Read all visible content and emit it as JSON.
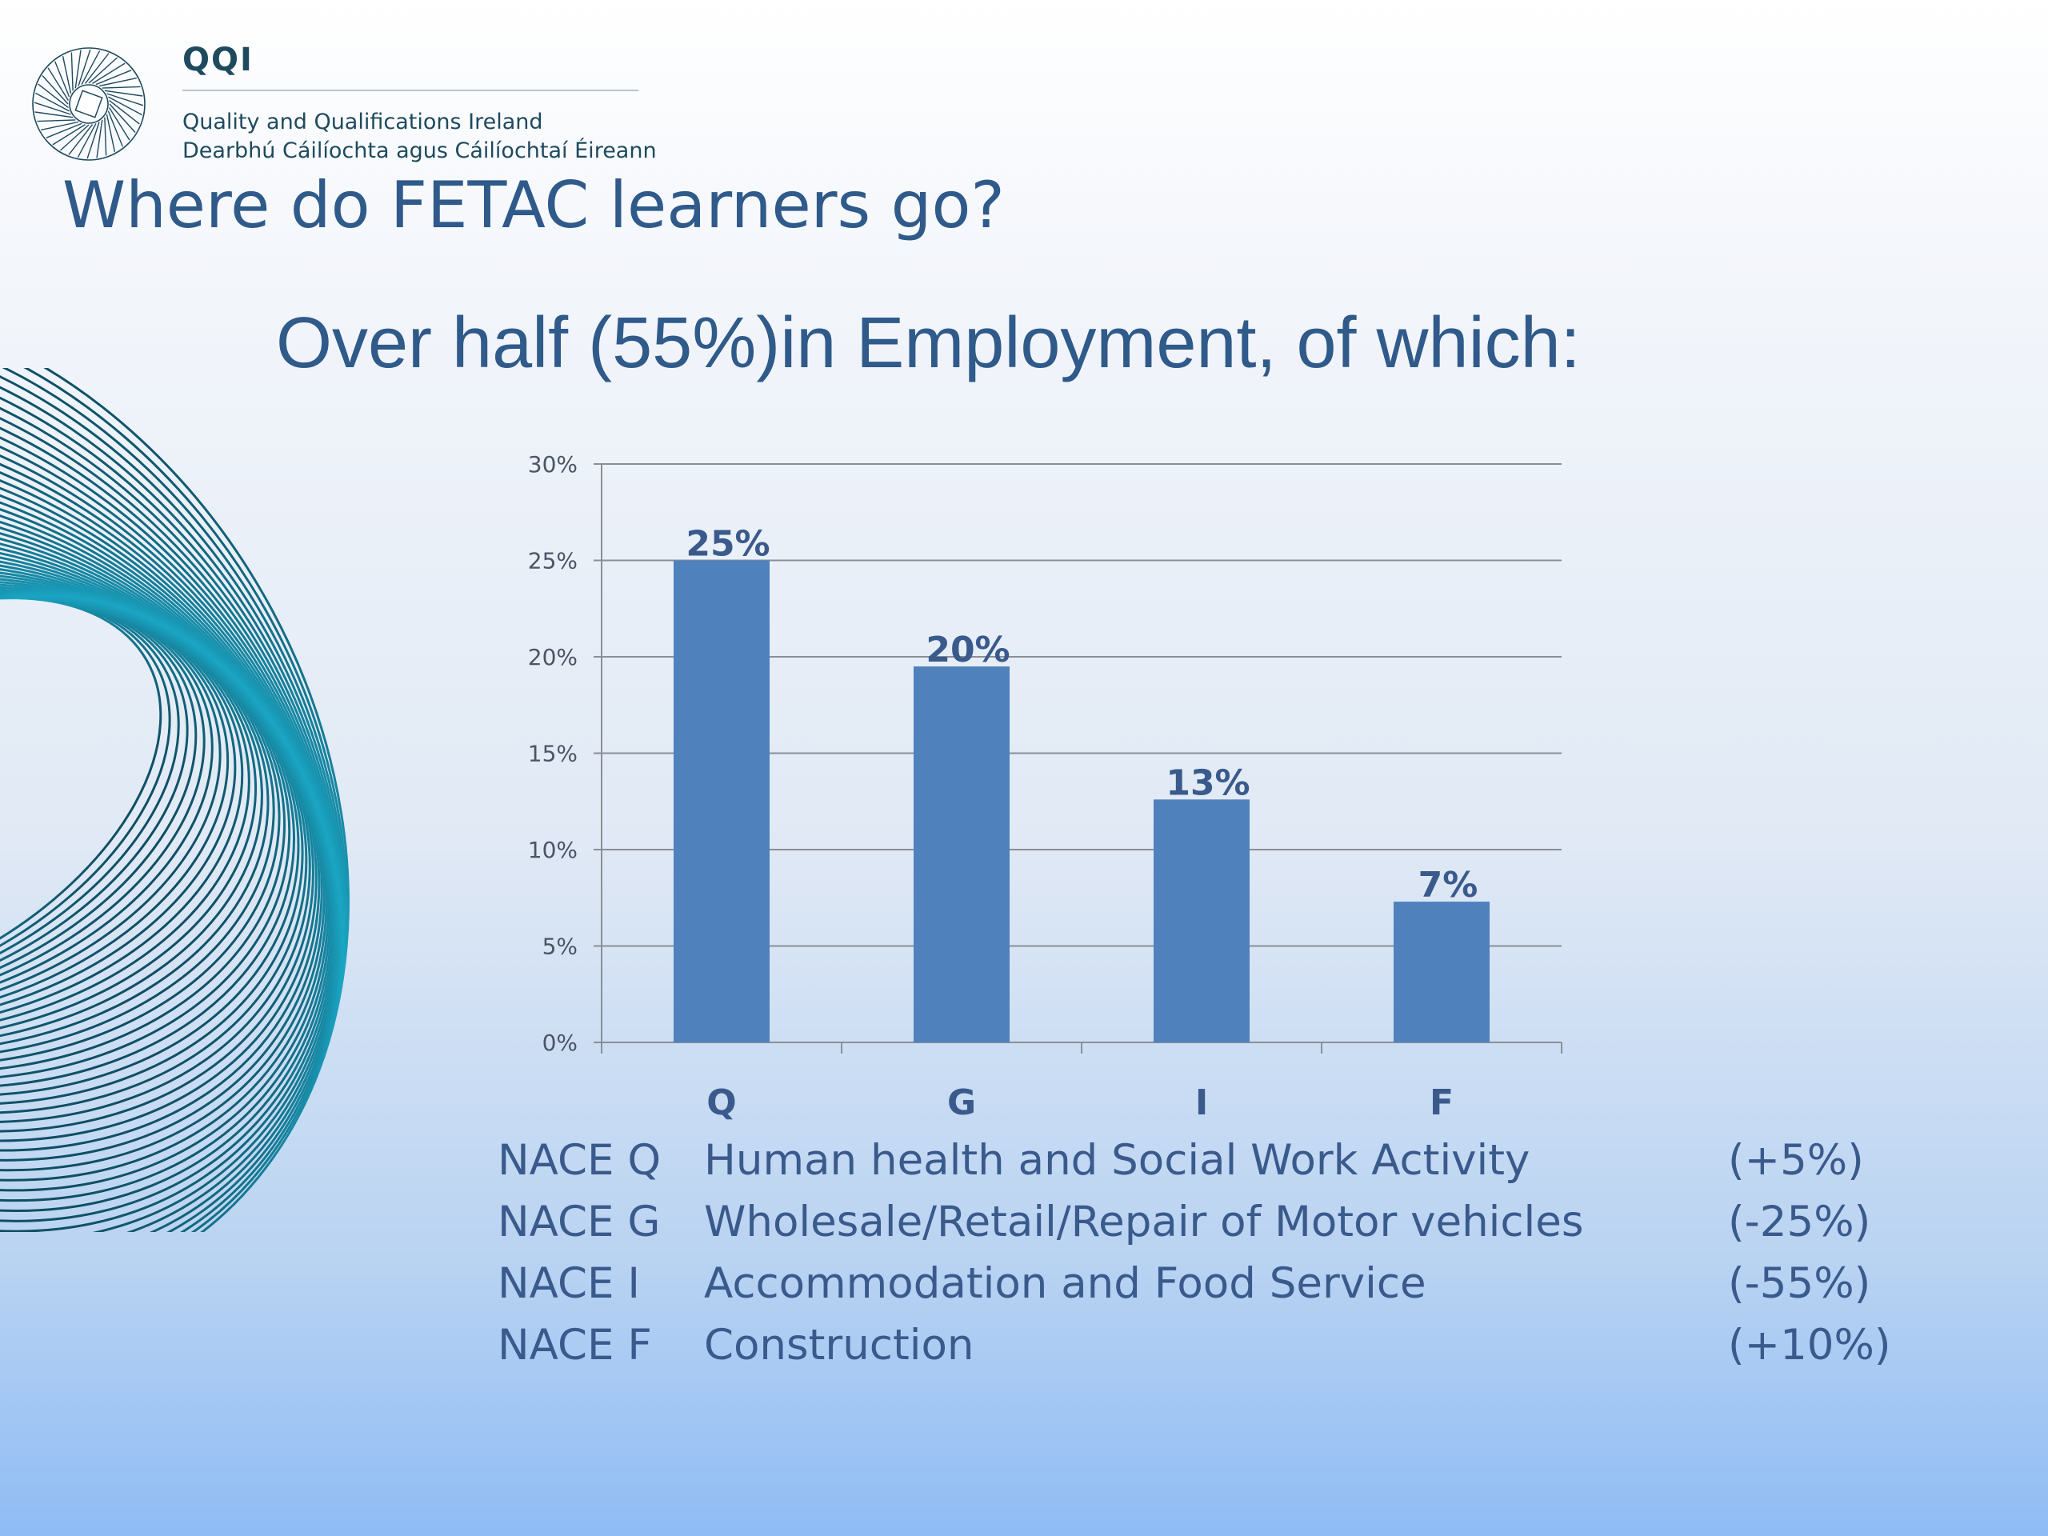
{
  "brand": {
    "name": "QQI",
    "line1": "Quality and Qualifications Ireland",
    "line2": "Dearbhú Cáilíochta agus Cáilíochtaí Éireann"
  },
  "slide": {
    "title": "Where do FETAC learners go?",
    "subtitle": "Over half (55%)in Employment, of which:"
  },
  "chart_data": {
    "type": "bar",
    "categories": [
      "Q",
      "G",
      "I",
      "F"
    ],
    "values": [
      25,
      19.5,
      12.6,
      7.3
    ],
    "data_labels": [
      "25%",
      "20%",
      "13%",
      "7%"
    ],
    "y_ticks": [
      "0%",
      "5%",
      "10%",
      "15%",
      "20%",
      "25%",
      "30%"
    ],
    "ylim": [
      0,
      30
    ],
    "grid": true,
    "bar_color": "#4f81bd",
    "title": "",
    "xlabel": "",
    "ylabel": ""
  },
  "legend": [
    {
      "code": "NACE Q",
      "description": "Human health and Social Work Activity",
      "change": "(+5%)"
    },
    {
      "code": "NACE G",
      "description": "Wholesale/Retail/Repair of Motor vehicles",
      "change": "(-25%)"
    },
    {
      "code": "NACE I",
      "description": "Accommodation and Food Service",
      "change": "(-55%)"
    },
    {
      "code": "NACE F",
      "description": "Construction",
      "change": "(+10%)"
    }
  ]
}
